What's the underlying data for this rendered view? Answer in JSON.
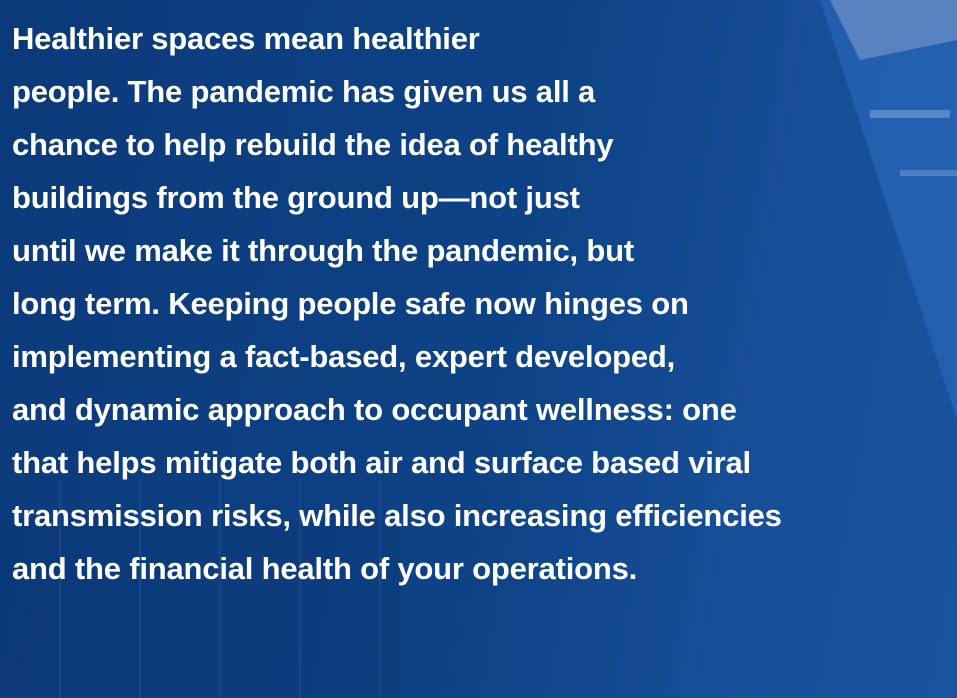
{
  "paragraph": {
    "lines": [
      "Healthier spaces mean healthier",
      "people. The pandemic has given us all a",
      "chance to help rebuild the idea of healthy",
      "buildings from the ground up—not just",
      "until we make it through the pandemic, but",
      "long term. Keeping people safe now hinges on",
      "implementing a fact-based, expert developed,",
      "and dynamic approach to occupant wellness: one",
      "that helps mitigate both air and surface based viral",
      "transmission risks, while also increasing efficiencies",
      "and the financial health of your operations."
    ]
  }
}
